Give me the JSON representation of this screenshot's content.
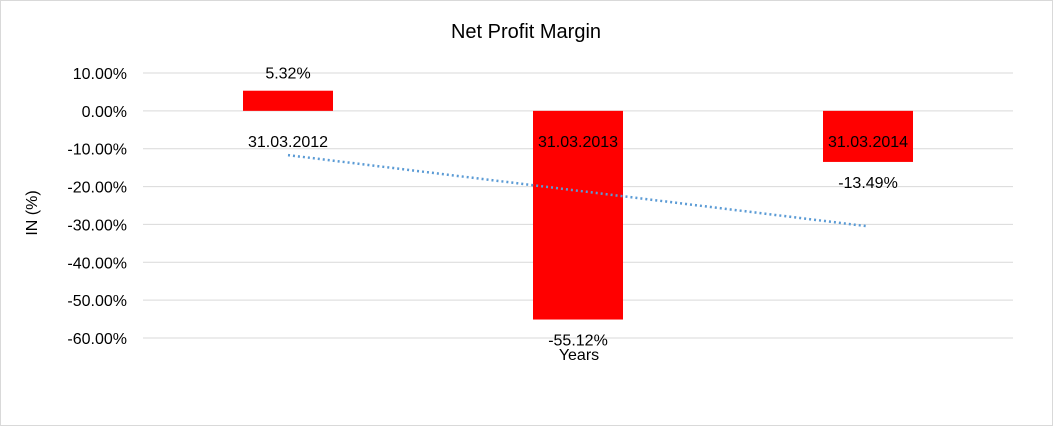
{
  "chart_data": {
    "type": "bar",
    "title": "Net Profit Margin",
    "xlabel": "Years",
    "ylabel": "IN (%)",
    "categories": [
      "31.03.2012",
      "31.03.2013",
      "31.03.2014"
    ],
    "series": [
      {
        "values": [
          5.32,
          -55.12,
          -13.49
        ],
        "labels": [
          "5.32%",
          "-55.12%",
          "-13.49%"
        ],
        "color": "#ff0000"
      }
    ],
    "ylim": [
      -60,
      10
    ],
    "yticks": [
      10,
      0,
      -10,
      -20,
      -30,
      -40,
      -50,
      -60
    ],
    "ytick_labels": [
      "10.00%",
      "0.00%",
      "-10.00%",
      "-20.00%",
      "-30.00%",
      "-40.00%",
      "-50.00%",
      "-60.00%"
    ],
    "trendline": {
      "type": "linear",
      "style": "dotted",
      "color": "#5b9bd5"
    },
    "grid": true,
    "legend": "none"
  }
}
